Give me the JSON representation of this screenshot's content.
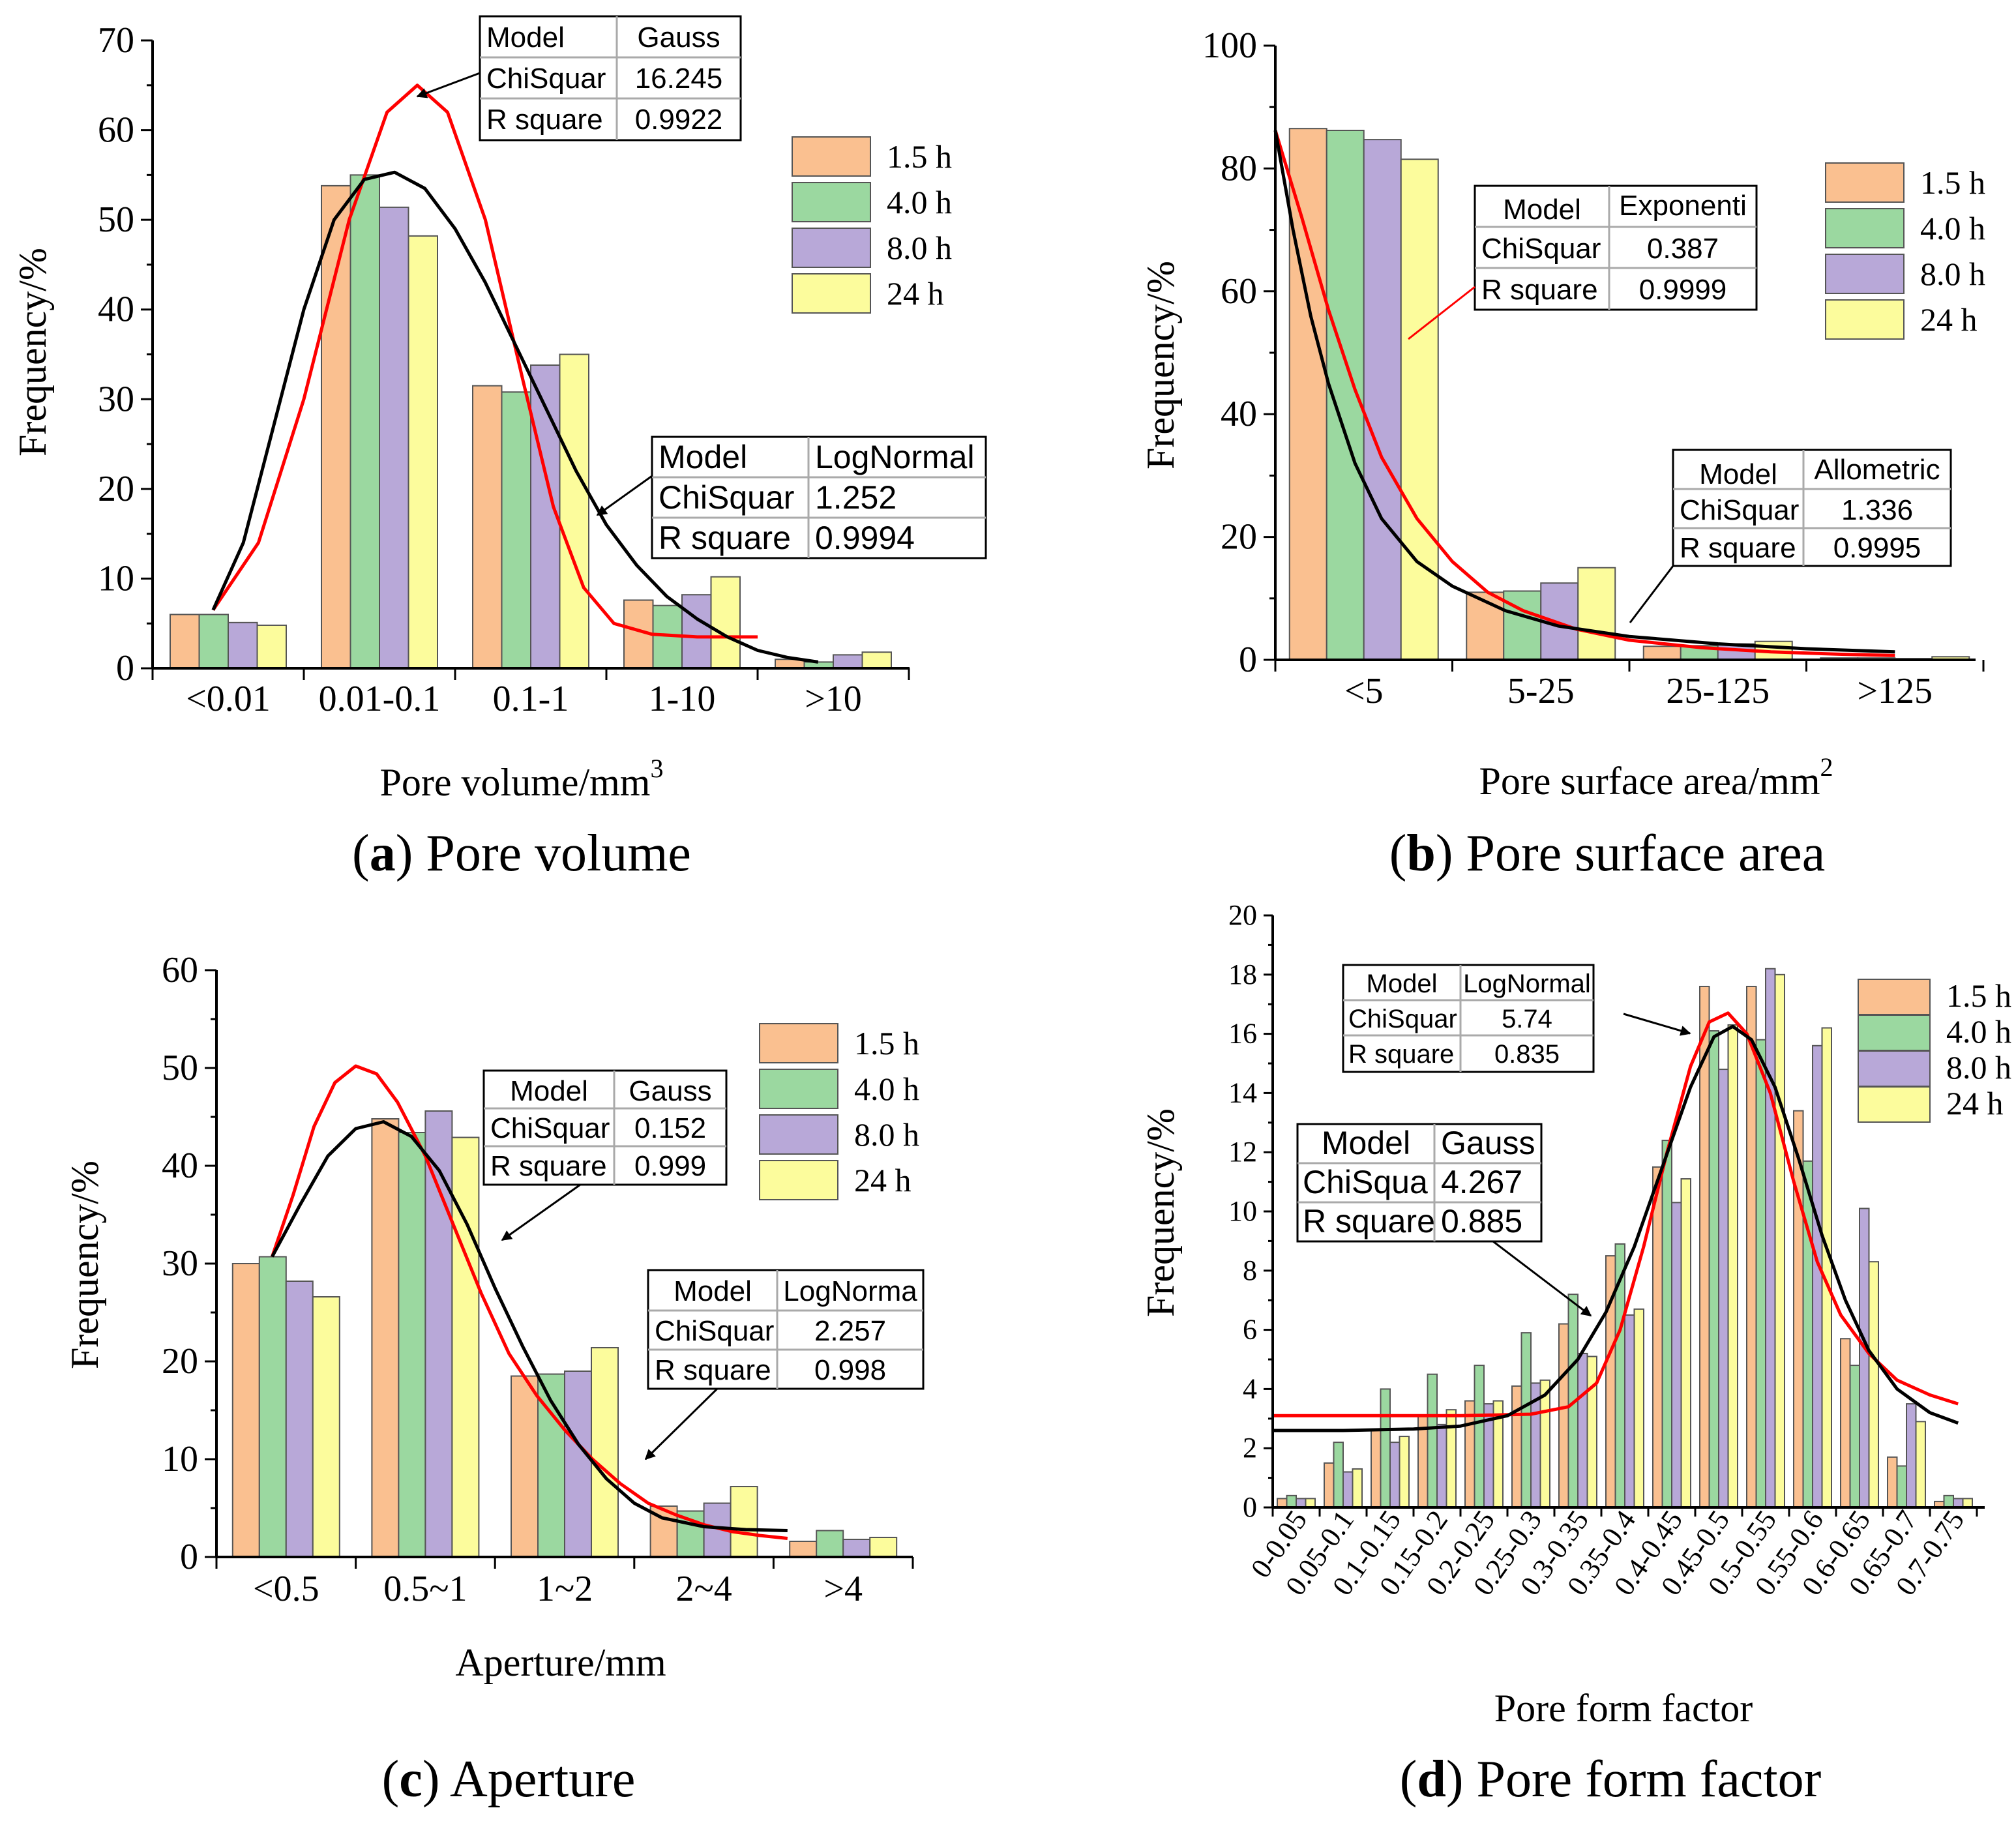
{
  "colors": {
    "1.5 h": "#fac090",
    "4.0 h": "#9bd8a0",
    "8.0 h": "#b8a8d8",
    "24  h": "#fcfc9c",
    "fit1": "#ff0000",
    "fit2": "#000000"
  },
  "legend": [
    "1.5 h",
    "4.0 h",
    "8.0 h",
    "24  h"
  ],
  "chart_data": [
    {
      "id": "a",
      "type": "bar",
      "caption_letter": "a",
      "caption_text": " Pore volume",
      "xlabel": "Pore volume/mm",
      "xlabel_sup": "3",
      "ylabel": "Frequency/%",
      "ylim": [
        0,
        70
      ],
      "yticks": [
        0,
        10,
        20,
        30,
        40,
        50,
        60,
        70
      ],
      "categories": [
        "<0.01",
        "0.01-0.1",
        "0.1-1",
        "1-10",
        ">10"
      ],
      "series": [
        {
          "name": "1.5 h",
          "values": [
            6,
            53.8,
            31.5,
            7.6,
            1.0
          ]
        },
        {
          "name": "4.0 h",
          "values": [
            6,
            55.0,
            30.8,
            7.0,
            0.7
          ]
        },
        {
          "name": "8.0 h",
          "values": [
            5.1,
            51.4,
            33.8,
            8.2,
            1.5
          ]
        },
        {
          "name": "24  h",
          "values": [
            4.8,
            48.2,
            35.0,
            10.2,
            1.8
          ]
        }
      ],
      "fits": [
        {
          "model": "Gauss",
          "chisq": "16.245",
          "r2": "0.9922",
          "color": "red",
          "points": [
            [
              0.4,
              6.5
            ],
            [
              0.7,
              14
            ],
            [
              1.0,
              30
            ],
            [
              1.3,
              50
            ],
            [
              1.55,
              62
            ],
            [
              1.75,
              65
            ],
            [
              1.95,
              62
            ],
            [
              2.2,
              50
            ],
            [
              2.45,
              32
            ],
            [
              2.65,
              18
            ],
            [
              2.85,
              9
            ],
            [
              3.05,
              5
            ],
            [
              3.3,
              3.8
            ],
            [
              3.6,
              3.5
            ],
            [
              4.0,
              3.5
            ]
          ]
        },
        {
          "model": "LogNormal",
          "chisq": "1.252",
          "r2": "0.9994",
          "color": "black",
          "points": [
            [
              0.4,
              6.5
            ],
            [
              0.6,
              14
            ],
            [
              0.8,
              27
            ],
            [
              1.0,
              40
            ],
            [
              1.2,
              50
            ],
            [
              1.4,
              54.5
            ],
            [
              1.6,
              55.3
            ],
            [
              1.8,
              53.5
            ],
            [
              2.0,
              49
            ],
            [
              2.2,
              43
            ],
            [
              2.4,
              36
            ],
            [
              2.6,
              29
            ],
            [
              2.8,
              22
            ],
            [
              3.0,
              16
            ],
            [
              3.2,
              11.5
            ],
            [
              3.4,
              8
            ],
            [
              3.6,
              5.5
            ],
            [
              3.8,
              3.5
            ],
            [
              4.0,
              2
            ],
            [
              4.2,
              1.2
            ],
            [
              4.4,
              0.7
            ]
          ]
        }
      ],
      "boxes": [
        {
          "model": "Gauss",
          "chisq": "16.245",
          "r2": "0.9922"
        },
        {
          "model": "LogNormal",
          "chisq": "1.252",
          "r2": "0.9994"
        }
      ]
    },
    {
      "id": "b",
      "type": "bar",
      "caption_letter": "b",
      "caption_text": " Pore surface area",
      "xlabel": "Pore surface area/mm",
      "xlabel_sup": "2",
      "ylabel": "Frequency/%",
      "ylim": [
        0,
        100
      ],
      "yticks": [
        0,
        20,
        40,
        60,
        80,
        100
      ],
      "categories": [
        "<5",
        "5-25",
        "25-125",
        ">125"
      ],
      "series": [
        {
          "name": "1.5 h",
          "values": [
            86.5,
            11.0,
            2.2,
            0.3
          ]
        },
        {
          "name": "4.0 h",
          "values": [
            86.2,
            11.2,
            2.3,
            0.3
          ]
        },
        {
          "name": "8.0 h",
          "values": [
            84.7,
            12.5,
            2.6,
            0.2
          ]
        },
        {
          "name": "24  h",
          "values": [
            81.5,
            15.0,
            3.0,
            0.5
          ]
        }
      ],
      "fits": [
        {
          "model": "Exponenti",
          "chisq": "0.387",
          "r2": "0.9999",
          "color": "red",
          "points": [
            [
              0.0,
              86.2
            ],
            [
              0.15,
              72
            ],
            [
              0.3,
              57
            ],
            [
              0.45,
              44
            ],
            [
              0.6,
              33
            ],
            [
              0.8,
              23
            ],
            [
              1.0,
              16
            ],
            [
              1.2,
              11
            ],
            [
              1.4,
              8
            ],
            [
              1.7,
              5
            ],
            [
              2.0,
              3.2
            ],
            [
              2.4,
              2.0
            ],
            [
              2.8,
              1.3
            ],
            [
              3.2,
              0.9
            ],
            [
              3.5,
              0.7
            ]
          ]
        },
        {
          "model": "Allometric",
          "chisq": "1.336",
          "r2": "0.9995",
          "color": "black",
          "points": [
            [
              0.0,
              86.2
            ],
            [
              0.1,
              70
            ],
            [
              0.2,
              56
            ],
            [
              0.3,
              45
            ],
            [
              0.45,
              32
            ],
            [
              0.6,
              23
            ],
            [
              0.8,
              16
            ],
            [
              1.0,
              12
            ],
            [
              1.3,
              8
            ],
            [
              1.6,
              5.5
            ],
            [
              2.0,
              3.8
            ],
            [
              2.5,
              2.6
            ],
            [
              3.0,
              1.8
            ],
            [
              3.5,
              1.3
            ]
          ]
        }
      ],
      "boxes": [
        {
          "model": "Exponenti",
          "chisq": "0.387",
          "r2": "0.9999"
        },
        {
          "model": "Allometric",
          "chisq": "1.336",
          "r2": "0.9995"
        }
      ]
    },
    {
      "id": "c",
      "type": "bar",
      "caption_letter": "c",
      "caption_text": " Aperture",
      "xlabel": "Aperture/mm",
      "xlabel_sup": "",
      "ylabel": "Frequency/%",
      "ylim": [
        0,
        60
      ],
      "yticks": [
        0,
        10,
        20,
        30,
        40,
        50,
        60
      ],
      "categories": [
        "<0.5",
        "0.5~1",
        "1~2",
        "2~4",
        ">4"
      ],
      "series": [
        {
          "name": "1.5 h",
          "values": [
            30,
            44.8,
            18.5,
            5.2,
            1.6
          ]
        },
        {
          "name": "4.0 h",
          "values": [
            30.7,
            43.4,
            18.7,
            4.7,
            2.7
          ]
        },
        {
          "name": "8.0 h",
          "values": [
            28.2,
            45.6,
            19.0,
            5.5,
            1.8
          ]
        },
        {
          "name": "24  h",
          "values": [
            26.6,
            42.9,
            21.4,
            7.2,
            2.0
          ]
        }
      ],
      "fits": [
        {
          "model": "LogNorma",
          "chisq": "2.257",
          "r2": "0.998",
          "color": "red",
          "points": [
            [
              0.4,
              30.7
            ],
            [
              0.55,
              37
            ],
            [
              0.7,
              44
            ],
            [
              0.85,
              48.5
            ],
            [
              1.0,
              50.2
            ],
            [
              1.15,
              49.4
            ],
            [
              1.3,
              46.5
            ],
            [
              1.5,
              41
            ],
            [
              1.7,
              34
            ],
            [
              1.9,
              27
            ],
            [
              2.1,
              20.8
            ],
            [
              2.3,
              16.5
            ],
            [
              2.5,
              13
            ],
            [
              2.7,
              10
            ],
            [
              2.9,
              7.5
            ],
            [
              3.1,
              5.5
            ],
            [
              3.3,
              4.3
            ],
            [
              3.5,
              3.3
            ],
            [
              3.7,
              2.6
            ],
            [
              3.9,
              2.2
            ],
            [
              4.1,
              1.9
            ]
          ]
        },
        {
          "model": "Gauss",
          "chisq": "0.152",
          "r2": "0.999",
          "color": "black",
          "points": [
            [
              0.4,
              30.7
            ],
            [
              0.6,
              36
            ],
            [
              0.8,
              41
            ],
            [
              1.0,
              43.8
            ],
            [
              1.2,
              44.5
            ],
            [
              1.4,
              43
            ],
            [
              1.6,
              39.5
            ],
            [
              1.8,
              34
            ],
            [
              2.0,
              27.5
            ],
            [
              2.2,
              21.5
            ],
            [
              2.4,
              16
            ],
            [
              2.6,
              11.5
            ],
            [
              2.8,
              8
            ],
            [
              3.0,
              5.5
            ],
            [
              3.2,
              4
            ],
            [
              3.5,
              3.1
            ],
            [
              3.8,
              2.8
            ],
            [
              4.1,
              2.7
            ]
          ]
        }
      ],
      "boxes": [
        {
          "model": "Gauss",
          "chisq": "0.152",
          "r2": "0.999"
        },
        {
          "model": "LogNorma",
          "chisq": "2.257",
          "r2": "0.998"
        }
      ]
    },
    {
      "id": "d",
      "type": "bar",
      "caption_letter": "d",
      "caption_text": " Pore form factor",
      "xlabel": "Pore form factor",
      "xlabel_sup": "",
      "ylabel": "Frequency/%",
      "ylim": [
        0,
        20
      ],
      "yticks": [
        0,
        2,
        4,
        6,
        8,
        10,
        12,
        14,
        16,
        18,
        20
      ],
      "categories": [
        "0-0.05",
        "0.05-0.1",
        "0.1-0.15",
        "0.15-0.2",
        "0.2-0.25",
        "0.25-0.3",
        "0.3-0.35",
        "0.35-0.4",
        "0.4-0.45",
        "0.45-0.5",
        "0.5-0.55",
        "0.55-0.6",
        "0.6-0.65",
        "0.65-0.7",
        "0.7-0.75"
      ],
      "series": [
        {
          "name": "1.5 h",
          "values": [
            0.3,
            1.5,
            2.6,
            3.1,
            3.6,
            4.1,
            6.2,
            8.5,
            11.5,
            17.6,
            17.6,
            13.4,
            5.7,
            1.7,
            0.2
          ]
        },
        {
          "name": "4.0 h",
          "values": [
            0.4,
            2.2,
            4.0,
            4.5,
            4.8,
            5.9,
            7.2,
            8.9,
            12.4,
            16.1,
            15.8,
            11.7,
            4.8,
            1.4,
            0.4
          ]
        },
        {
          "name": "8.0 h",
          "values": [
            0.3,
            1.2,
            2.2,
            2.8,
            3.5,
            4.2,
            5.2,
            6.5,
            10.3,
            14.8,
            18.2,
            15.6,
            10.1,
            3.5,
            0.3
          ]
        },
        {
          "name": "24  h",
          "values": [
            0.3,
            1.3,
            2.4,
            3.3,
            3.6,
            4.3,
            5.1,
            6.7,
            11.1,
            16.3,
            18.0,
            16.2,
            8.3,
            2.9,
            0.3
          ]
        }
      ],
      "fits": [
        {
          "model": "LogNormal",
          "chisq": "5.74",
          "r2": "0.835",
          "color": "red",
          "points": [
            [
              0.0,
              3.1
            ],
            [
              2.0,
              3.1
            ],
            [
              4.0,
              3.1
            ],
            [
              5.5,
              3.15
            ],
            [
              6.3,
              3.4
            ],
            [
              6.9,
              4.2
            ],
            [
              7.4,
              6.0
            ],
            [
              7.9,
              8.8
            ],
            [
              8.4,
              12.0
            ],
            [
              8.9,
              14.9
            ],
            [
              9.3,
              16.4
            ],
            [
              9.7,
              16.7
            ],
            [
              10.1,
              16.0
            ],
            [
              10.6,
              14.0
            ],
            [
              11.1,
              11.0
            ],
            [
              11.6,
              8.3
            ],
            [
              12.1,
              6.5
            ],
            [
              12.7,
              5.2
            ],
            [
              13.3,
              4.3
            ],
            [
              14.0,
              3.8
            ],
            [
              14.6,
              3.5
            ]
          ]
        },
        {
          "model": "Gauss",
          "chisq": "4.267",
          "r2": "0.885",
          "color": "black",
          "points": [
            [
              0.0,
              2.6
            ],
            [
              1.5,
              2.6
            ],
            [
              3.0,
              2.65
            ],
            [
              4.0,
              2.75
            ],
            [
              5.0,
              3.1
            ],
            [
              5.8,
              3.8
            ],
            [
              6.5,
              5.0
            ],
            [
              7.1,
              6.6
            ],
            [
              7.7,
              8.8
            ],
            [
              8.3,
              11.5
            ],
            [
              8.9,
              14.2
            ],
            [
              9.4,
              15.9
            ],
            [
              9.8,
              16.25
            ],
            [
              10.2,
              15.8
            ],
            [
              10.7,
              14.2
            ],
            [
              11.2,
              11.8
            ],
            [
              11.7,
              9.2
            ],
            [
              12.2,
              7.0
            ],
            [
              12.7,
              5.3
            ],
            [
              13.3,
              4.0
            ],
            [
              14.0,
              3.2
            ],
            [
              14.6,
              2.85
            ]
          ]
        }
      ],
      "boxes": [
        {
          "model": "LogNormal",
          "chisq": "5.74",
          "r2": "0.835"
        },
        {
          "model": "Gauss",
          "chisq": "4.267",
          "r2": "0.885"
        }
      ]
    }
  ],
  "box_labels": {
    "model": "Model",
    "chisq": "ChiSquar",
    "chisq_short": "ChiSqua",
    "r2": "R square"
  }
}
